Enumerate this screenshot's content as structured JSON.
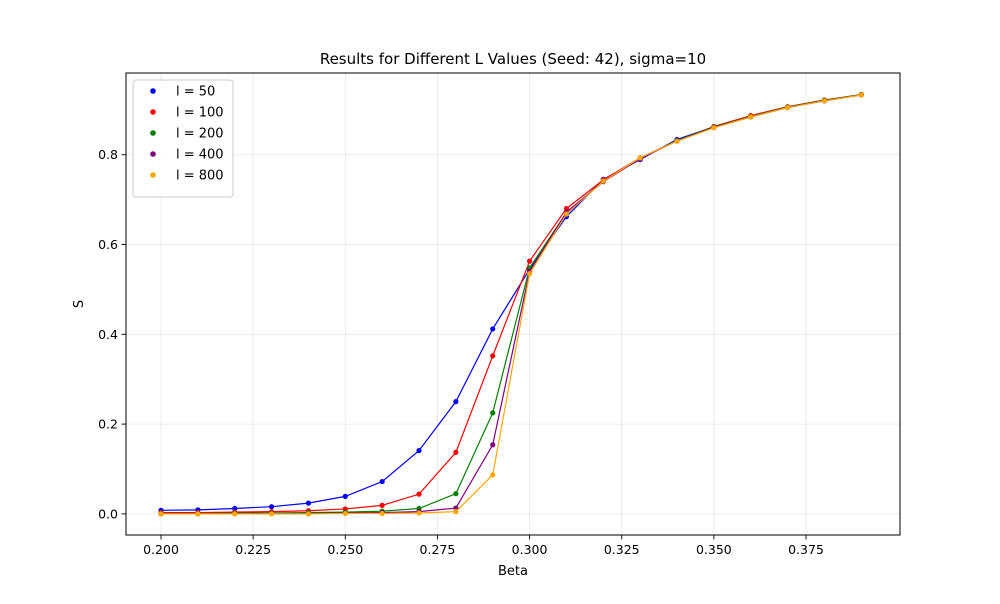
{
  "chart_data": {
    "type": "scatter",
    "title": "Results for Different L Values (Seed: 42), sigma=10",
    "xlabel": "Beta",
    "ylabel": "S",
    "xlim": [
      0.1905,
      0.4005
    ],
    "ylim": [
      -0.047,
      0.982
    ],
    "xticks": [
      0.2,
      0.225,
      0.25,
      0.275,
      0.3,
      0.325,
      0.35,
      0.375
    ],
    "xtick_labels": [
      "0.200",
      "0.225",
      "0.250",
      "0.275",
      "0.300",
      "0.325",
      "0.350",
      "0.375"
    ],
    "yticks": [
      0.0,
      0.2,
      0.4,
      0.6,
      0.8
    ],
    "ytick_labels": [
      "0.0",
      "0.2",
      "0.4",
      "0.6",
      "0.8"
    ],
    "grid": true,
    "legend_position": "upper-left",
    "x": [
      0.2,
      0.21,
      0.22,
      0.23,
      0.24,
      0.25,
      0.26,
      0.27,
      0.28,
      0.29,
      0.3,
      0.31,
      0.32,
      0.33,
      0.34,
      0.35,
      0.36,
      0.37,
      0.38,
      0.39
    ],
    "series": [
      {
        "name": "l = 50",
        "color": "#0000ff",
        "values": [
          0.008,
          0.009,
          0.012,
          0.016,
          0.024,
          0.039,
          0.072,
          0.141,
          0.25,
          0.412,
          0.545,
          0.662,
          0.745,
          0.789,
          0.834,
          0.862,
          0.886,
          0.906,
          0.92,
          0.934
        ]
      },
      {
        "name": "l = 100",
        "color": "#ff0000",
        "values": [
          0.003,
          0.003,
          0.004,
          0.005,
          0.007,
          0.011,
          0.019,
          0.044,
          0.137,
          0.352,
          0.563,
          0.68,
          0.744,
          0.793,
          0.831,
          0.863,
          0.887,
          0.907,
          0.922,
          0.934
        ]
      },
      {
        "name": "l = 200",
        "color": "#008000",
        "values": [
          0.001,
          0.001,
          0.002,
          0.002,
          0.003,
          0.004,
          0.006,
          0.012,
          0.045,
          0.225,
          0.548,
          0.671,
          0.741,
          0.791,
          0.832,
          0.862,
          0.885,
          0.906,
          0.921,
          0.934
        ]
      },
      {
        "name": "l = 400",
        "color": "#800080",
        "values": [
          0.0,
          0.0,
          0.001,
          0.001,
          0.001,
          0.002,
          0.003,
          0.005,
          0.013,
          0.154,
          0.54,
          0.672,
          0.74,
          0.791,
          0.831,
          0.861,
          0.884,
          0.905,
          0.92,
          0.933
        ]
      },
      {
        "name": "l = 800",
        "color": "#ffa500",
        "values": [
          0.0,
          0.0,
          0.0,
          0.0,
          0.0,
          0.001,
          0.001,
          0.002,
          0.005,
          0.087,
          0.535,
          0.668,
          0.741,
          0.793,
          0.83,
          0.86,
          0.884,
          0.905,
          0.92,
          0.933
        ]
      }
    ]
  }
}
